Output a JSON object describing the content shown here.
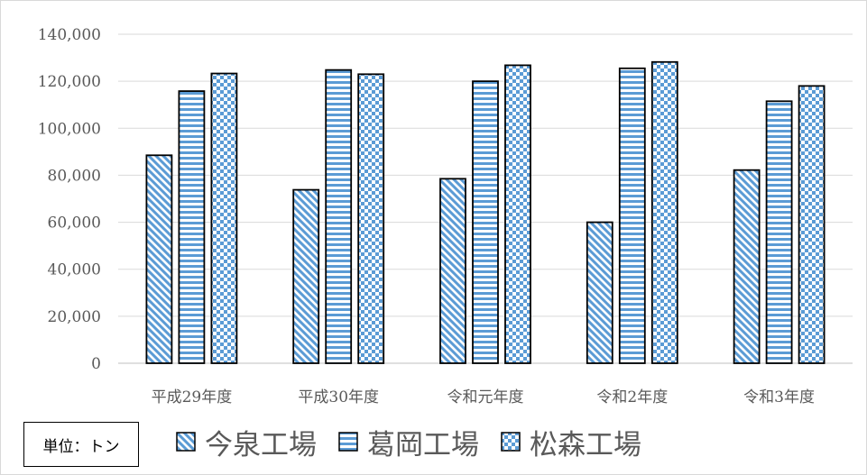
{
  "chart_data": {
    "type": "bar",
    "categories": [
      "平成29年度",
      "平成30年度",
      "令和元年度",
      "令和2年度",
      "令和3年度"
    ],
    "series": [
      {
        "name": "今泉工場",
        "pattern": "diagonal",
        "values": [
          88500,
          73800,
          78500,
          60000,
          82200
        ]
      },
      {
        "name": "葛岡工場",
        "pattern": "horizontal",
        "values": [
          115800,
          124800,
          120000,
          125500,
          111500
        ]
      },
      {
        "name": "松森工場",
        "pattern": "checker",
        "values": [
          123300,
          123000,
          126800,
          128200,
          118000
        ]
      }
    ],
    "ylim": [
      0,
      140000
    ],
    "y_ticks": [
      "0",
      "20,000",
      "40,000",
      "60,000",
      "80,000",
      "100,000",
      "120,000",
      "140,000"
    ],
    "grid": true,
    "legend_position": "bottom",
    "unit_label": "単位：トン"
  },
  "colors": {
    "bar_fill": "#5b9bd5",
    "bar_outline": "#000000",
    "grid": "#d9d9d9",
    "text": "#595959"
  }
}
